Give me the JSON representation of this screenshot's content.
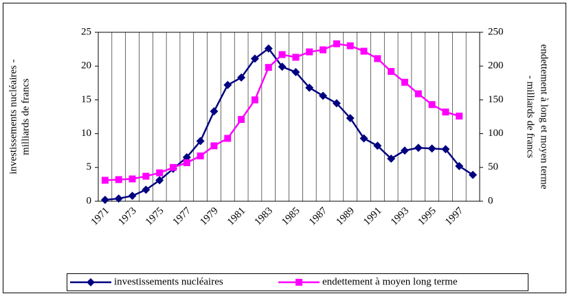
{
  "chart_data": {
    "type": "line",
    "categories": [
      "1971",
      null,
      "1973",
      null,
      "1975",
      null,
      "1977",
      null,
      "1979",
      null,
      "1981",
      null,
      "1983",
      null,
      "1985",
      null,
      "1987",
      null,
      "1989",
      null,
      "1991",
      null,
      "1993",
      null,
      "1995",
      null,
      "1997",
      null
    ],
    "series": [
      {
        "name": "investissements nucléaires",
        "color": "#000080",
        "marker": "diamond",
        "values": [
          0.2,
          0.4,
          0.8,
          1.7,
          3.1,
          4.8,
          6.5,
          8.9,
          13.3,
          17.2,
          18.3,
          21.1,
          22.6,
          19.9,
          19.1,
          16.8,
          15.6,
          14.5,
          12.3,
          9.3,
          8.2,
          6.3,
          7.5,
          7.9,
          7.8,
          7.7,
          5.2,
          3.9
        ]
      },
      {
        "name": "endettement à moyen long terme",
        "color": "#ff00ff",
        "marker": "square",
        "axis": "y2",
        "values": [
          31,
          32,
          33,
          37,
          42,
          50,
          57,
          67,
          82,
          93,
          121,
          150,
          198,
          217,
          213,
          221,
          224,
          233,
          230,
          222,
          211,
          192,
          176,
          159,
          143,
          132,
          126,
          null
        ]
      }
    ],
    "ylabel": [
      "investissements nucléaires -",
      "milliards de francs"
    ],
    "y2label": [
      "endettement à long et moyen terme",
      "- milliards de francs"
    ],
    "ylim": [
      0,
      25
    ],
    "yticks": [
      0,
      5,
      10,
      15,
      20,
      25
    ],
    "y2lim": [
      0,
      250
    ],
    "y2ticks": [
      0,
      50,
      100,
      150,
      200,
      250
    ],
    "legend": "bottom"
  }
}
